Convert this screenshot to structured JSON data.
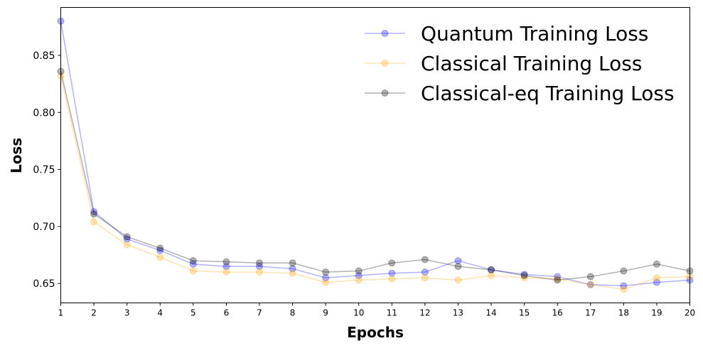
{
  "chart_data": {
    "type": "line",
    "title": "",
    "xlabel": "Epochs",
    "ylabel": "Loss",
    "x": [
      1,
      2,
      3,
      4,
      5,
      6,
      7,
      8,
      9,
      10,
      11,
      12,
      13,
      14,
      15,
      16,
      17,
      18,
      19,
      20
    ],
    "xlim": [
      1,
      20
    ],
    "ylim": [
      0.633,
      0.892
    ],
    "yticks": [
      "0.65",
      "0.70",
      "0.75",
      "0.80",
      "0.85"
    ],
    "ytick_values": [
      0.65,
      0.7,
      0.75,
      0.8,
      0.85
    ],
    "grid": false,
    "legend_position": "top-right",
    "series": [
      {
        "name": "Quantum Training Loss",
        "color": "#0000ff",
        "values": [
          0.88,
          0.713,
          0.689,
          0.679,
          0.667,
          0.665,
          0.665,
          0.663,
          0.655,
          0.657,
          0.659,
          0.66,
          0.67,
          0.662,
          0.658,
          0.656,
          0.649,
          0.648,
          0.651,
          0.653
        ]
      },
      {
        "name": "Classical Training Loss",
        "color": "#ffa500",
        "values": [
          0.832,
          0.704,
          0.684,
          0.673,
          0.661,
          0.66,
          0.66,
          0.659,
          0.651,
          0.653,
          0.654,
          0.655,
          0.653,
          0.657,
          0.655,
          0.654,
          0.649,
          0.645,
          0.655,
          0.656
        ]
      },
      {
        "name": "Classical-eq Training Loss",
        "color": "#000000",
        "values": [
          0.836,
          0.711,
          0.691,
          0.681,
          0.67,
          0.669,
          0.668,
          0.668,
          0.66,
          0.661,
          0.668,
          0.671,
          0.665,
          0.662,
          0.657,
          0.653,
          0.656,
          0.661,
          0.667,
          0.661
        ]
      }
    ]
  }
}
